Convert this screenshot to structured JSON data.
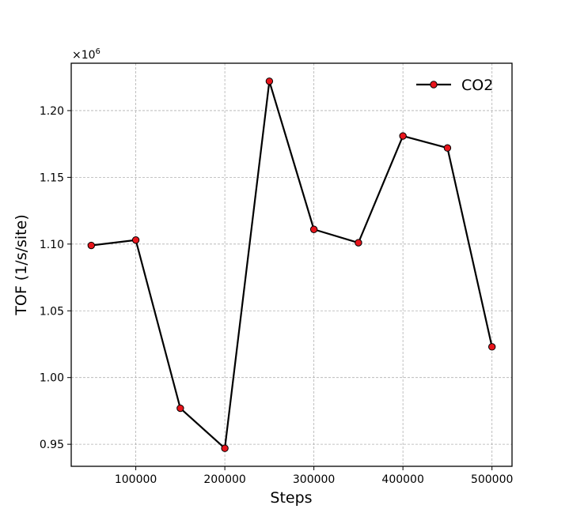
{
  "chart_data": {
    "type": "line",
    "title": "",
    "xlabel": "Steps",
    "ylabel": "TOF (1/s/site)",
    "y_offset_label": {
      "base": "×10",
      "exponent": "6"
    },
    "xlim": [
      27500,
      522500
    ],
    "ylim": [
      0.9335,
      1.2355
    ],
    "xticks": [
      100000,
      200000,
      300000,
      400000,
      500000
    ],
    "xtick_labels": [
      "100000",
      "200000",
      "300000",
      "400000",
      "500000"
    ],
    "yticks": [
      0.95,
      1.0,
      1.05,
      1.1,
      1.15,
      1.2
    ],
    "ytick_labels": [
      "0.95",
      "1.00",
      "1.05",
      "1.10",
      "1.15",
      "1.20"
    ],
    "grid": true,
    "legend_position": "top-right",
    "series": [
      {
        "name": "CO2",
        "line_color": "#000000",
        "marker_color": "#e8141b",
        "x": [
          50000,
          100000,
          150000,
          200000,
          250000,
          300000,
          350000,
          400000,
          450000,
          500000
        ],
        "y": [
          1.099,
          1.103,
          0.977,
          0.947,
          1.222,
          1.111,
          1.101,
          1.181,
          1.172,
          1.023
        ]
      }
    ]
  }
}
